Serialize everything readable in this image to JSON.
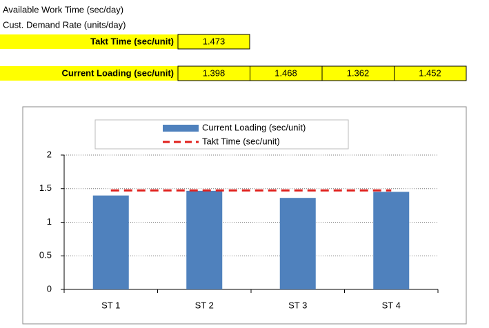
{
  "sheet": {
    "rows": [
      {
        "label": "Available Work Time (sec/day)"
      },
      {
        "label": "Cust. Demand Rate (units/day)"
      }
    ],
    "takt": {
      "label": "Takt Time (sec/unit)",
      "value": 1.473
    },
    "loading": {
      "label": "Current Loading (sec/unit)",
      "values": [
        1.398,
        1.468,
        1.362,
        1.452
      ]
    }
  },
  "chart_data": {
    "type": "bar",
    "categories": [
      "ST 1",
      "ST 2",
      "ST 3",
      "ST 4"
    ],
    "series": [
      {
        "name": "Current Loading (sec/unit)",
        "color": "#4f81bd",
        "values": [
          1.398,
          1.468,
          1.362,
          1.452
        ]
      },
      {
        "name": "Takt Time (sec/unit)",
        "color": "#e0201c",
        "type": "line",
        "values": [
          1.473,
          1.473,
          1.473,
          1.473
        ]
      }
    ],
    "ylim": [
      0,
      2
    ],
    "yticks": [
      0,
      0.5,
      1,
      1.5,
      2
    ],
    "grid": true,
    "legend": "top"
  }
}
